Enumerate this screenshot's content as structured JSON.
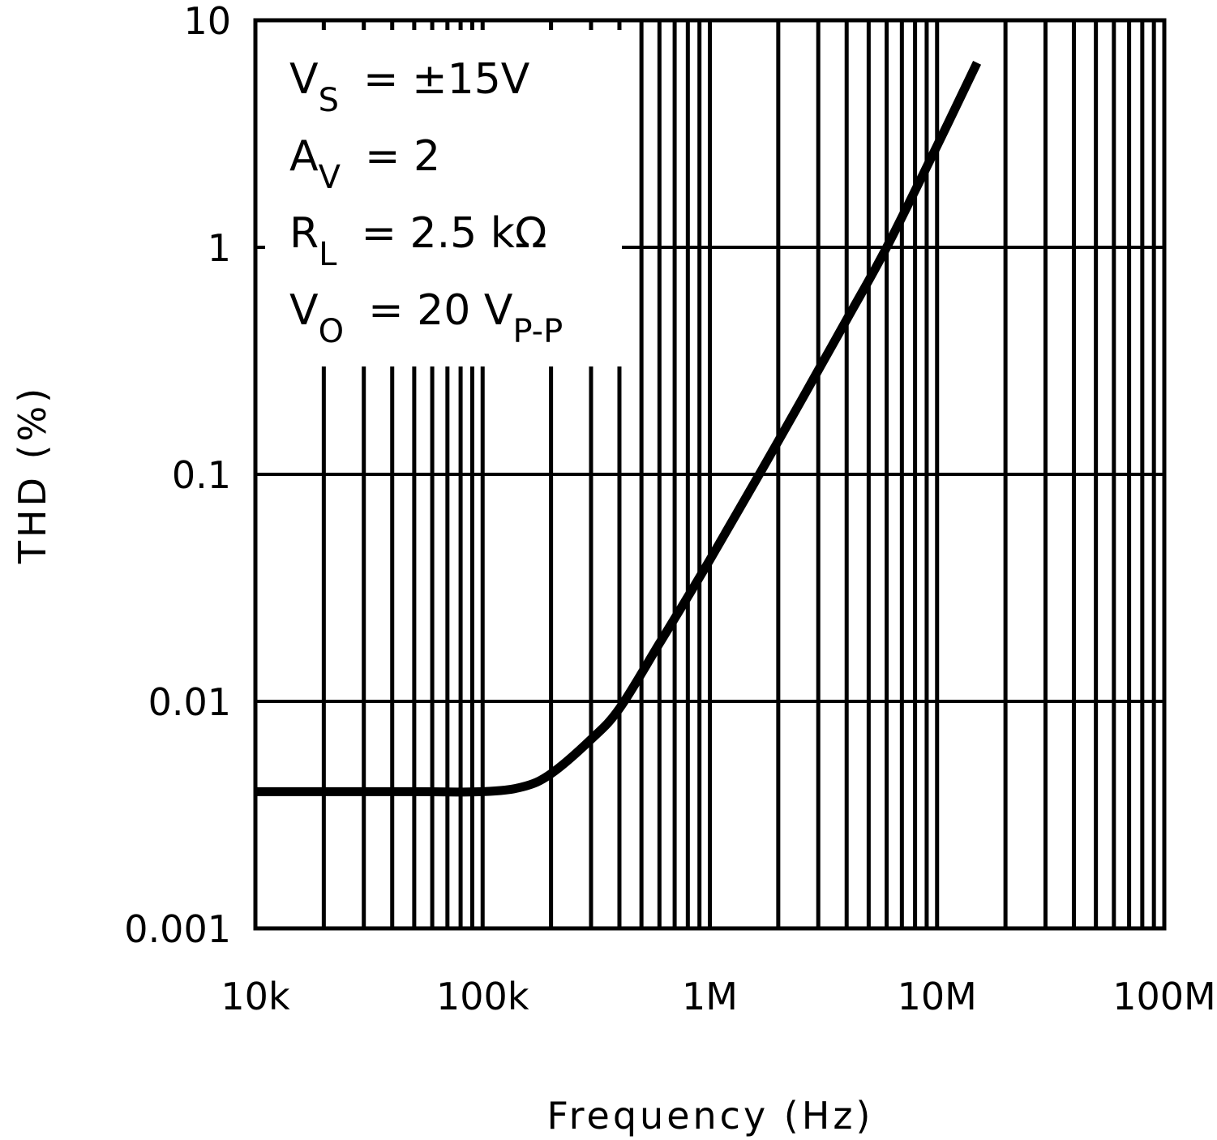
{
  "chart_data": {
    "type": "line",
    "title": "",
    "xlabel": "Frequency (Hz)",
    "ylabel": "THD (%)",
    "xscale": "log",
    "yscale": "log",
    "xlim": [
      10000,
      100000000
    ],
    "ylim": [
      0.001,
      10
    ],
    "grid": true,
    "x_tick_labels": [
      "10k",
      "100k",
      "1M",
      "10M",
      "100M"
    ],
    "x_ticks": [
      10000,
      100000,
      1000000,
      10000000,
      100000000
    ],
    "y_tick_labels": [
      "0.001",
      "0.01",
      "0.1",
      "1",
      "10"
    ],
    "y_ticks": [
      0.001,
      0.01,
      0.1,
      1,
      10
    ],
    "annotations": [
      {
        "main": "V",
        "sub": "S",
        "rest": "= ±15V"
      },
      {
        "main": "A",
        "sub": "V",
        "rest": "= 2"
      },
      {
        "main": "R",
        "sub": "L",
        "rest": "= 2.5 kΩ"
      },
      {
        "main": "V",
        "sub": "O",
        "rest": "= 20 V",
        "rest_sub": "P-P"
      }
    ],
    "legend_position": "upper-left",
    "series": [
      {
        "name": "THD",
        "x": [
          10000,
          50000,
          100000,
          150000,
          200000,
          300000,
          400000,
          600000,
          1000000,
          2000000,
          4000000,
          6000000,
          10000000,
          15000000
        ],
        "values": [
          0.004,
          0.004,
          0.004,
          0.0042,
          0.0048,
          0.0068,
          0.0093,
          0.018,
          0.042,
          0.14,
          0.48,
          1.0,
          2.8,
          6.5
        ]
      }
    ]
  }
}
